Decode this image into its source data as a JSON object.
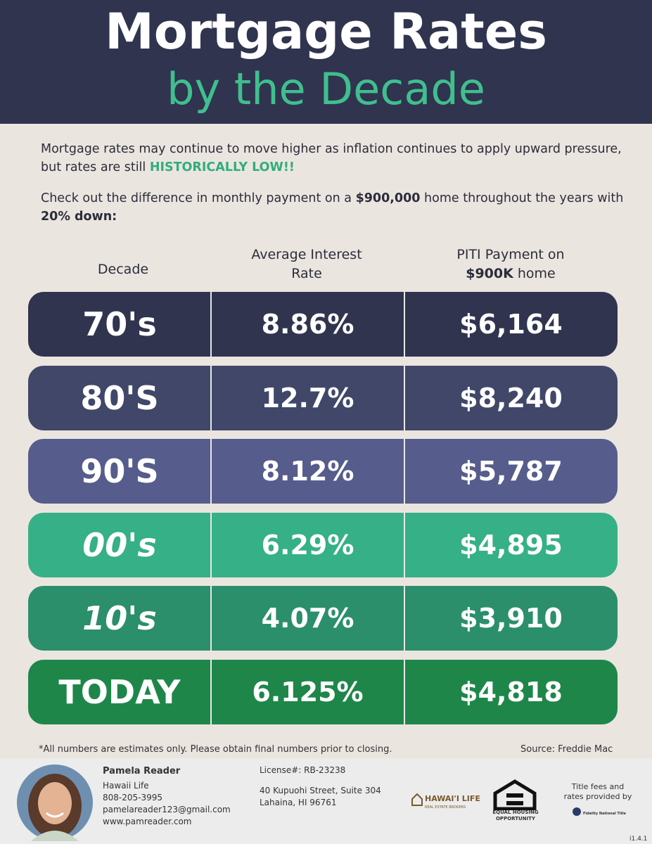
{
  "header": {
    "title": "Mortgage Rates",
    "subtitle": "by the Decade"
  },
  "intro": {
    "p1": [
      "Mortgage rates may continue to move higher as inflation continues to apply upward pressure, but rates are still ",
      "HISTORICALLY LOW!!"
    ],
    "p2": [
      "Check out the difference in monthly payment on a ",
      "$900,000",
      " home throughout the years with ",
      "20% down:"
    ]
  },
  "table": {
    "headers": [
      "Decade",
      "Average Interest Rate",
      [
        "PITI Payment on",
        "$900K",
        " home"
      ]
    ],
    "rows": [
      {
        "cells": [
          "70's",
          "8.86%",
          "$6,164"
        ],
        "color": "#30344f"
      },
      {
        "cells": [
          "80'S",
          "12.7%",
          "$8,240"
        ],
        "color": "#414769"
      },
      {
        "cells": [
          "90'S",
          "8.12%",
          "$5,787"
        ],
        "color": "#565d8c"
      },
      {
        "cells": [
          "00's",
          "6.29%",
          "$4,895"
        ],
        "color": "#36b086"
      },
      {
        "cells": [
          "10's",
          "4.07%",
          "$3,910"
        ],
        "color": "#2a8f6a"
      },
      {
        "cells": [
          "TODAY",
          "6.125%",
          "$4,818"
        ],
        "color": "#1f864a"
      }
    ],
    "footnote": "*All numbers are estimates only. Please obtain final numbers prior to closing.",
    "source": "Source: Freddie Mac"
  },
  "footer": {
    "agent": {
      "name": "Pamela Reader",
      "company": "Hawaii Life",
      "phone": "808-205-3995",
      "email": "pamelareader123@gmail.com",
      "website": "www.pamreader.com"
    },
    "license": "License#: RB-23238",
    "address": [
      "40 Kupuohi Street, Suite 304",
      "Lahaina, HI 96761"
    ],
    "logos": [
      "HAWAI'I LIFE",
      "REAL ESTATE BROKERS",
      "EQUAL HOUSING OPPORTUNITY",
      "Fidelity National Title"
    ],
    "title_credit": "Title fees and rates provided by",
    "version": "i1.4.1"
  }
}
